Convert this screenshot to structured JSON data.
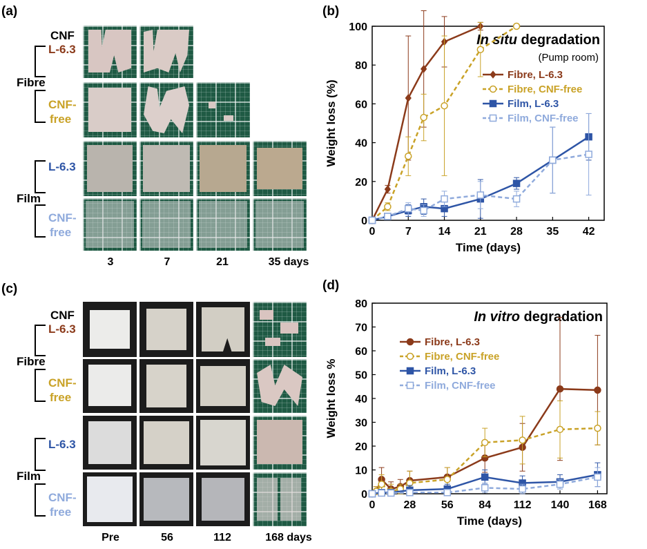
{
  "panels": {
    "a": {
      "letter": "(a)",
      "days": [
        "3",
        "7",
        "21",
        "35 days"
      ]
    },
    "c": {
      "letter": "(c)",
      "days": [
        "Pre",
        "56",
        "112",
        "168 days"
      ]
    },
    "labels": {
      "cnf": "CNF",
      "l63": "L-6.3",
      "fibre": "Fibre",
      "film": "Film",
      "cnf_dash": "CNF-",
      "free": "free"
    }
  },
  "chart_data": [
    {
      "panel": "(b)",
      "type": "line",
      "title": "In situ degradation",
      "title_italic": "In situ",
      "title_rest": " degradation",
      "subtitle": "(Pump room)",
      "xlabel": "Time (days)",
      "ylabel": "Weight loss (%)",
      "xlim": [
        0,
        45
      ],
      "ylim": [
        0,
        100
      ],
      "xticks": [
        0,
        7,
        14,
        21,
        28,
        35,
        42
      ],
      "yticks": [
        0,
        20,
        40,
        60,
        80,
        100
      ],
      "legend": "right",
      "series": [
        {
          "name": "Fibre, L-6.3",
          "color": "#8B3A1A",
          "dash": false,
          "marker": "diamond-filled",
          "x": [
            0,
            3,
            7,
            10,
            14,
            21
          ],
          "y": [
            0,
            16,
            63,
            78,
            92,
            100
          ],
          "err": [
            0,
            2,
            32,
            30,
            13,
            2
          ]
        },
        {
          "name": "Fibre, CNF-free",
          "color": "#C9A227",
          "dash": true,
          "marker": "circle-open",
          "x": [
            0,
            3,
            7,
            10,
            14,
            21,
            28
          ],
          "y": [
            0,
            7,
            33,
            53,
            59,
            88,
            100
          ],
          "err": [
            0,
            2,
            10,
            12,
            36,
            14,
            1
          ]
        },
        {
          "name": "Film, L-6.3",
          "color": "#2E55A6",
          "dash": false,
          "marker": "square-filled",
          "x": [
            0,
            3,
            7,
            10,
            14,
            21,
            28,
            35,
            42
          ],
          "y": [
            0,
            2,
            5,
            7,
            6,
            11,
            19,
            31,
            43
          ],
          "err": [
            0,
            1,
            3,
            4,
            4,
            10,
            3,
            17,
            12
          ]
        },
        {
          "name": "Film, CNF-free",
          "color": "#8FAADC",
          "dash": true,
          "marker": "square-open",
          "x": [
            0,
            3,
            7,
            10,
            14,
            21,
            28,
            35,
            42
          ],
          "y": [
            0,
            2,
            6,
            5,
            11,
            13,
            11,
            31,
            34
          ],
          "err": [
            0,
            1,
            3,
            3,
            4,
            7,
            4,
            17,
            21
          ]
        }
      ]
    },
    {
      "panel": "(d)",
      "type": "line",
      "title": "In vitro degradation",
      "title_italic": "In vitro",
      "title_rest": " degradation",
      "subtitle": "",
      "xlabel": "Time (days)",
      "ylabel": "Weight loss %",
      "xlim": [
        0,
        175
      ],
      "ylim": [
        0,
        80
      ],
      "xticks": [
        0,
        28,
        56,
        84,
        112,
        140,
        168
      ],
      "yticks": [
        0,
        10,
        20,
        30,
        40,
        50,
        60,
        70,
        80
      ],
      "legend": "top-left",
      "series": [
        {
          "name": "Fibre, L-6.3",
          "color": "#8B3A1A",
          "dash": false,
          "marker": "circle-filled",
          "x": [
            0,
            3,
            7,
            14,
            21,
            28,
            56,
            84,
            112,
            140,
            168
          ],
          "y": [
            0,
            1,
            6,
            2,
            3,
            5.5,
            7,
            15,
            19.5,
            44,
            43.5
          ],
          "err": [
            0,
            2,
            5,
            3,
            3,
            4,
            4,
            6,
            10,
            30,
            23
          ]
        },
        {
          "name": "Fibre, CNF-free",
          "color": "#C9A227",
          "dash": true,
          "marker": "circle-open",
          "x": [
            0,
            3,
            7,
            14,
            21,
            28,
            56,
            84,
            112,
            140,
            168
          ],
          "y": [
            0,
            1,
            4,
            1,
            2,
            4.5,
            6,
            21.5,
            22.5,
            27,
            27.5
          ],
          "err": [
            0,
            2,
            4,
            3,
            2,
            5,
            5,
            6,
            10,
            12,
            7
          ]
        },
        {
          "name": "Film, L-6.3",
          "color": "#2E55A6",
          "dash": false,
          "marker": "square-filled",
          "x": [
            0,
            7,
            14,
            28,
            56,
            84,
            112,
            140,
            168
          ],
          "y": [
            0,
            0.5,
            0.5,
            1.5,
            2,
            7,
            4.5,
            5,
            8
          ],
          "err": [
            0,
            1,
            1,
            2,
            2,
            3,
            3,
            3,
            5
          ]
        },
        {
          "name": "Film, CNF-free",
          "color": "#8FAADC",
          "dash": true,
          "marker": "square-open",
          "x": [
            0,
            7,
            14,
            28,
            56,
            84,
            112,
            140,
            168
          ],
          "y": [
            0,
            0.3,
            0.3,
            0.5,
            0.5,
            2.5,
            2,
            4,
            7
          ],
          "err": [
            0,
            1,
            1,
            1,
            1,
            2,
            2,
            2,
            4
          ]
        }
      ]
    }
  ]
}
